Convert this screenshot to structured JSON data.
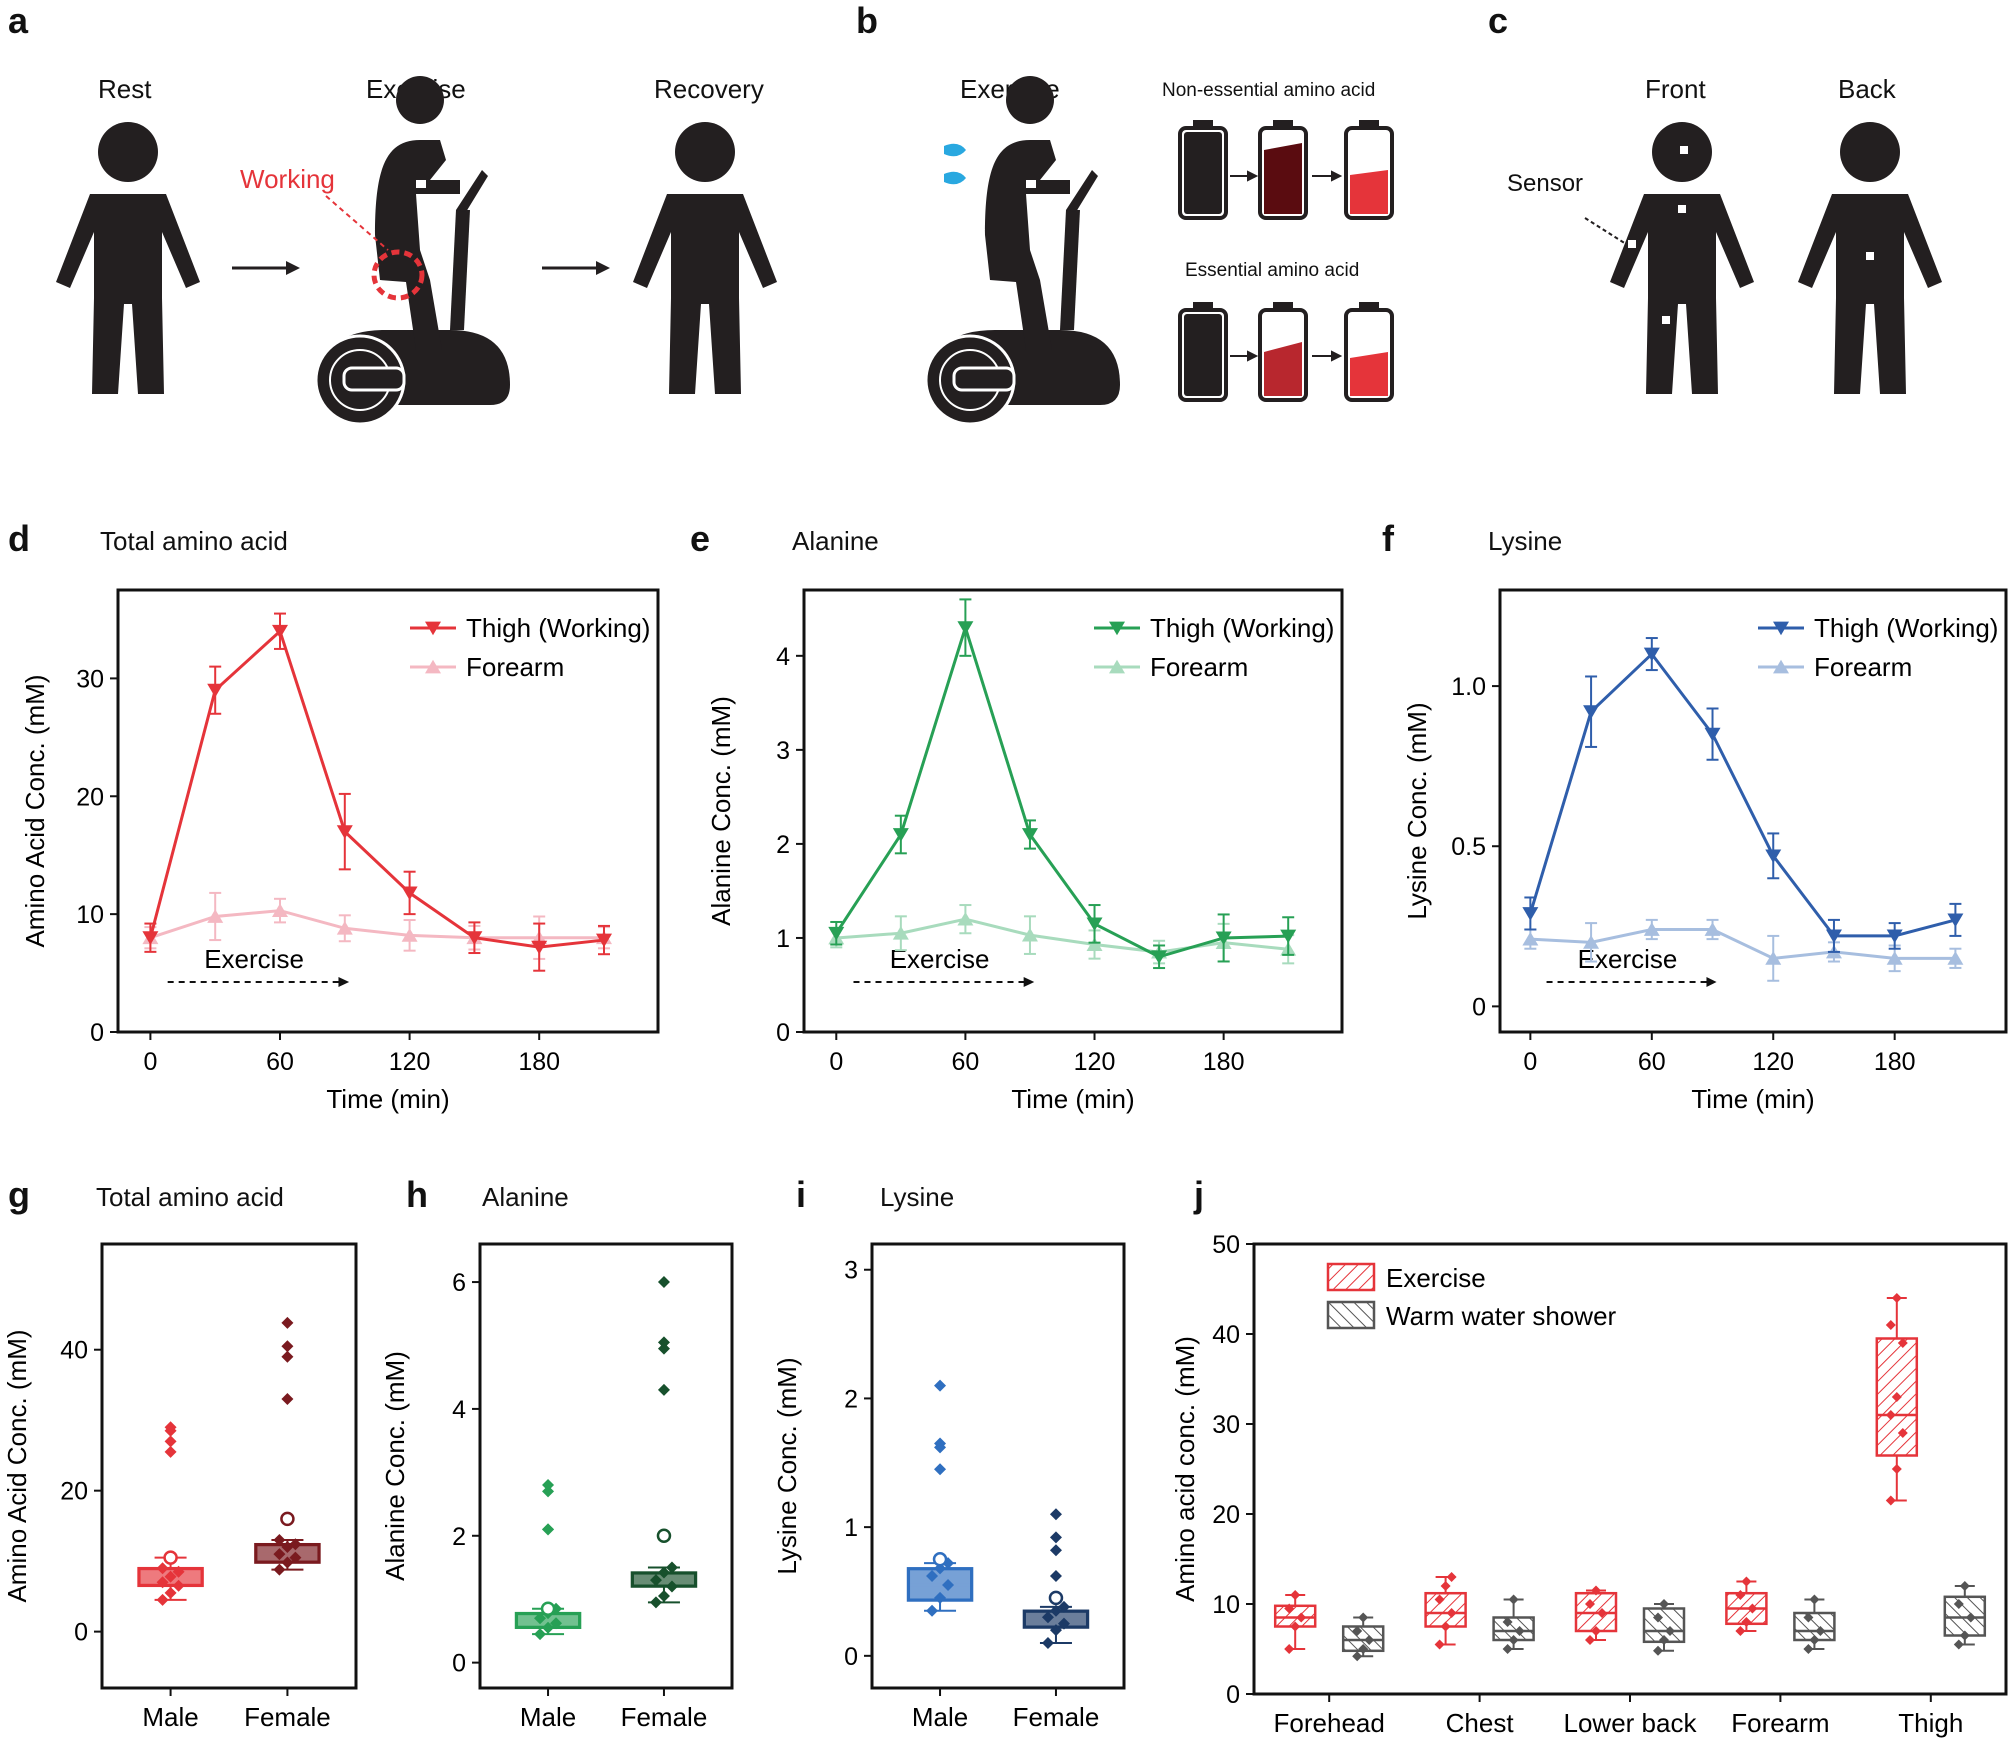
{
  "panel_letters": [
    "a",
    "b",
    "c",
    "d",
    "e",
    "f",
    "g",
    "h",
    "i",
    "j"
  ],
  "schematics": {
    "a": {
      "captions": [
        "Rest",
        "Exercise",
        "Recovery"
      ],
      "working_label": "Working",
      "working_color": "#e5343a"
    },
    "b": {
      "caption": "Exercise",
      "nonessential_label": "Non-essential amino acid",
      "essential_label": "Essential amino acid",
      "colors": {
        "dark": "#2b1416",
        "deep_red": "#5a0c10",
        "red": "#e5343a",
        "sweat": "#29a8e0"
      }
    },
    "c": {
      "captions": [
        "Front",
        "Back"
      ],
      "sensor_label": "Sensor"
    }
  },
  "chart_data": [
    {
      "id": "d",
      "type": "line",
      "title": "Total amino acid",
      "xlabel": "Time (min)",
      "ylabel": "Amino Acid Conc. (mM)",
      "xlim": [
        -15,
        235
      ],
      "ylim": [
        0,
        37.5
      ],
      "xticks": [
        0,
        60,
        120,
        180
      ],
      "yticks": [
        0,
        10,
        20,
        30
      ],
      "annotation": "Exercise",
      "legend_position": "top-right",
      "x": [
        0,
        30,
        60,
        90,
        120,
        150,
        180,
        210
      ],
      "series": [
        {
          "name": "Thigh (Working)",
          "color": "#e5343a",
          "marker": "triangle-down",
          "values": [
            8,
            29,
            34,
            17,
            11.8,
            8,
            7.2,
            7.8
          ],
          "errors": [
            1.2,
            2,
            1.5,
            3.2,
            1.8,
            1.3,
            2,
            1.2
          ]
        },
        {
          "name": "Forearm",
          "color": "#f4b8c2",
          "marker": "triangle-up",
          "values": [
            8,
            9.8,
            10.3,
            8.8,
            8.2,
            8,
            8,
            8
          ],
          "errors": [
            0.9,
            2,
            1,
            1.1,
            1.3,
            1,
            1.8,
            0.9
          ]
        }
      ]
    },
    {
      "id": "e",
      "type": "line",
      "title": "Alanine",
      "xlabel": "Time (min)",
      "ylabel": "Alanine Conc. (mM)",
      "xlim": [
        -15,
        235
      ],
      "ylim": [
        0,
        4.7
      ],
      "xticks": [
        0,
        60,
        120,
        180
      ],
      "yticks": [
        0,
        1,
        2,
        3,
        4
      ],
      "annotation": "Exercise",
      "legend_position": "top-right",
      "x": [
        0,
        30,
        60,
        90,
        120,
        150,
        180,
        210
      ],
      "series": [
        {
          "name": "Thigh (Working)",
          "color": "#27a055",
          "marker": "triangle-down",
          "values": [
            1.05,
            2.1,
            4.3,
            2.1,
            1.15,
            0.8,
            1,
            1.02
          ],
          "errors": [
            0.12,
            0.2,
            0.3,
            0.15,
            0.2,
            0.12,
            0.25,
            0.2
          ]
        },
        {
          "name": "Forearm",
          "color": "#a8dbbd",
          "marker": "triangle-up",
          "values": [
            1,
            1.05,
            1.2,
            1.03,
            0.93,
            0.85,
            0.95,
            0.88
          ],
          "errors": [
            0.1,
            0.18,
            0.15,
            0.2,
            0.15,
            0.12,
            0.2,
            0.15
          ]
        }
      ]
    },
    {
      "id": "f",
      "type": "line",
      "title": "Lysine",
      "xlabel": "Time (min)",
      "ylabel": "Lysine Conc. (mM)",
      "xlim": [
        -15,
        235
      ],
      "ylim": [
        -0.08,
        1.3
      ],
      "xticks": [
        0,
        60,
        120,
        180
      ],
      "yticks": [
        0,
        0.5,
        1.0
      ],
      "ytick_labels": [
        "0",
        "0.5",
        "1.0"
      ],
      "annotation": "Exercise",
      "legend_position": "top-right",
      "x": [
        0,
        30,
        60,
        90,
        120,
        150,
        180,
        210
      ],
      "series": [
        {
          "name": "Thigh (Working)",
          "color": "#2f5eab",
          "marker": "triangle-down",
          "values": [
            0.29,
            0.92,
            1.1,
            0.85,
            0.47,
            0.22,
            0.22,
            0.27
          ],
          "errors": [
            0.05,
            0.11,
            0.05,
            0.08,
            0.07,
            0.05,
            0.04,
            0.05
          ]
        },
        {
          "name": "Forearm",
          "color": "#a7bedf",
          "marker": "triangle-up",
          "values": [
            0.21,
            0.2,
            0.24,
            0.24,
            0.15,
            0.17,
            0.15,
            0.15
          ],
          "errors": [
            0.03,
            0.06,
            0.03,
            0.03,
            0.07,
            0.03,
            0.04,
            0.03
          ]
        }
      ]
    },
    {
      "id": "g",
      "type": "box",
      "title": "Total amino acid",
      "ylabel": "Amino Acid Conc. (mM)",
      "ylim": [
        -8,
        55
      ],
      "yticks": [
        0,
        20,
        40
      ],
      "categories": [
        "Male",
        "Female"
      ],
      "boxes": [
        {
          "name": "Male",
          "color": "#e5343a",
          "q1": 6.5,
          "median": 7.8,
          "q3": 9,
          "whisker_low": 4.5,
          "whisker_high": 10.5,
          "mean": 8,
          "points": [
            4.5,
            5.5,
            6.5,
            7,
            7.8,
            8.5,
            9,
            10.5
          ],
          "outliers": [
            25.5,
            27,
            29,
            28.5
          ],
          "open_outlier": 10.5
        },
        {
          "name": "Female",
          "color": "#7a1a1f",
          "q1": 9.8,
          "median": 11,
          "q3": 12.4,
          "whisker_low": 8.8,
          "whisker_high": 13,
          "mean": 11.2,
          "points": [
            8.8,
            9.8,
            10.5,
            11,
            12,
            12.4,
            13
          ],
          "outliers": [
            33,
            39,
            40.5,
            43.8
          ],
          "open_outlier": 16
        }
      ]
    },
    {
      "id": "h",
      "type": "box",
      "title": "Alanine",
      "ylabel": "Alanine Conc. (mM)",
      "ylim": [
        -0.4,
        6.6
      ],
      "yticks": [
        0,
        2,
        4,
        6
      ],
      "categories": [
        "Male",
        "Female"
      ],
      "boxes": [
        {
          "name": "Male",
          "color": "#27a055",
          "q1": 0.55,
          "median": 0.65,
          "q3": 0.78,
          "whisker_low": 0.45,
          "whisker_high": 0.85,
          "mean": 0.65,
          "points": [
            0.45,
            0.55,
            0.62,
            0.7,
            0.78,
            0.85
          ],
          "outliers": [
            2.1,
            2.1,
            2.7,
            2.8
          ],
          "open_outlier": 0.85
        },
        {
          "name": "Female",
          "color": "#17502c",
          "q1": 1.2,
          "median": 1.3,
          "q3": 1.42,
          "whisker_low": 0.95,
          "whisker_high": 1.5,
          "mean": 1.3,
          "points": [
            0.95,
            1.05,
            1.2,
            1.3,
            1.42,
            1.5
          ],
          "outliers": [
            4.3,
            4.95,
            5.05,
            6.0
          ],
          "open_outlier": 2.0
        }
      ]
    },
    {
      "id": "i",
      "type": "box",
      "title": "Lysine",
      "ylabel": "Lysine Conc. (mM)",
      "ylim": [
        -0.25,
        3.2
      ],
      "yticks": [
        0,
        1,
        2,
        3
      ],
      "categories": [
        "Male",
        "Female"
      ],
      "boxes": [
        {
          "name": "Male",
          "color": "#2f6fc0",
          "q1": 0.43,
          "median": 0.55,
          "q3": 0.68,
          "whisker_low": 0.35,
          "whisker_high": 0.72,
          "mean": 0.55,
          "points": [
            0.35,
            0.45,
            0.55,
            0.62,
            0.68,
            0.72
          ],
          "outliers": [
            1.45,
            1.62,
            1.65,
            2.1
          ],
          "open_outlier": 0.75
        },
        {
          "name": "Female",
          "color": "#1c3a66",
          "q1": 0.22,
          "median": 0.28,
          "q3": 0.35,
          "whisker_low": 0.1,
          "whisker_high": 0.38,
          "mean": 0.28,
          "points": [
            0.1,
            0.2,
            0.25,
            0.3,
            0.35,
            0.38
          ],
          "outliers": [
            0.62,
            0.82,
            0.92,
            1.1
          ],
          "open_outlier": 0.45
        }
      ]
    },
    {
      "id": "j",
      "type": "box",
      "ylabel": "Amino acid conc. (mM)",
      "ylim": [
        0,
        50
      ],
      "yticks": [
        0,
        10,
        20,
        30,
        40,
        50
      ],
      "categories": [
        "Forehead",
        "Chest",
        "Lower back",
        "Forearm",
        "Thigh"
      ],
      "legend_position": "top-left",
      "series": [
        {
          "name": "Exercise",
          "color": "#e5343a",
          "boxes": [
            {
              "q1": 7.5,
              "median": 8.5,
              "q3": 9.8,
              "whisker_low": 5,
              "whisker_high": 11,
              "points": [
                5,
                7.5,
                8.5,
                9.5,
                11
              ]
            },
            {
              "q1": 7.5,
              "median": 9,
              "q3": 11.2,
              "whisker_low": 5.5,
              "whisker_high": 13,
              "points": [
                5.5,
                7.5,
                9,
                10.5,
                12,
                13
              ]
            },
            {
              "q1": 7,
              "median": 9,
              "q3": 11.2,
              "whisker_low": 6,
              "whisker_high": 11.5,
              "points": [
                6,
                7,
                9,
                10,
                11.5
              ]
            },
            {
              "q1": 7.8,
              "median": 9.5,
              "q3": 11.2,
              "whisker_low": 7,
              "whisker_high": 12.5,
              "points": [
                7,
                8,
                9.5,
                11,
                12.5
              ]
            },
            {
              "q1": 26.5,
              "median": 31,
              "q3": 39.5,
              "whisker_low": 21.5,
              "whisker_high": 44,
              "points": [
                21.5,
                25,
                29,
                31,
                33,
                39,
                41,
                44
              ]
            }
          ]
        },
        {
          "name": "Warm water shower",
          "color": "#555555",
          "boxes": [
            {
              "q1": 4.8,
              "median": 6,
              "q3": 7.5,
              "whisker_low": 4.2,
              "whisker_high": 8.5,
              "points": [
                4.2,
                5,
                6,
                7,
                8.5
              ]
            },
            {
              "q1": 6,
              "median": 7,
              "q3": 8.5,
              "whisker_low": 5,
              "whisker_high": 10.5,
              "points": [
                5,
                6,
                7,
                8,
                10.5
              ]
            },
            {
              "q1": 5.8,
              "median": 7,
              "q3": 9.5,
              "whisker_low": 4.8,
              "whisker_high": 10,
              "points": [
                4.8,
                6,
                7,
                8.5,
                10
              ]
            },
            {
              "q1": 6,
              "median": 7,
              "q3": 9,
              "whisker_low": 5,
              "whisker_high": 10.5,
              "points": [
                5,
                6,
                7,
                8.5,
                10.5
              ]
            },
            {
              "q1": 6.5,
              "median": 8.5,
              "q3": 10.8,
              "whisker_low": 5.5,
              "whisker_high": 12,
              "points": [
                5.5,
                6.5,
                8.5,
                10,
                12
              ]
            }
          ]
        }
      ]
    }
  ]
}
